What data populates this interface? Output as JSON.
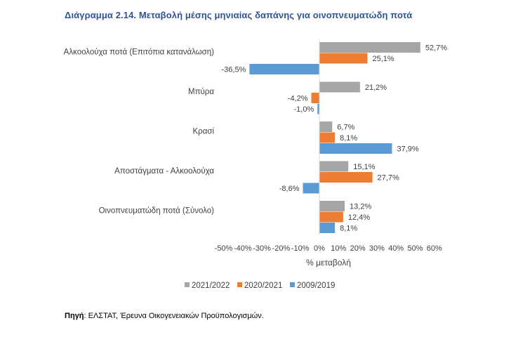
{
  "chart_data": {
    "type": "bar",
    "orientation": "horizontal",
    "title": "Διάγραμμα 2.14. Μεταβολή μέσης μηνιαίας δαπάνης για οινοπνευματώδη ποτά",
    "categories": [
      "Αλκοολούχα ποτά (Επιτόπια κατανάλωση)",
      "Μπύρα",
      "Κρασί",
      "Αποστάγματα - Αλκοολούχα",
      "Οινοπνευματώδη ποτά (Σύνολο)"
    ],
    "series": [
      {
        "name": "2021/2022",
        "color": "#a5a5a5",
        "values": [
          52.7,
          21.2,
          6.7,
          15.1,
          13.2
        ],
        "labels": [
          "52,7%",
          "21,2%",
          "6,7%",
          "15,1%",
          "13,2%"
        ]
      },
      {
        "name": "2020/2021",
        "color": "#ed7d31",
        "values": [
          25.1,
          -4.2,
          8.1,
          27.7,
          12.4
        ],
        "labels": [
          "25,1%",
          "-4,2%",
          "8,1%",
          "27,7%",
          "12,4%"
        ]
      },
      {
        "name": "2009/2019",
        "color": "#5b9bd5",
        "values": [
          -36.5,
          -1.0,
          37.9,
          -8.6,
          8.1
        ],
        "labels": [
          "-36,5%",
          "-1,0%",
          "37,9%",
          "-8,6%",
          "8,1%"
        ]
      }
    ],
    "xlabel": "% μεταβολή",
    "ylabel": "",
    "xlim": [
      -50,
      60
    ],
    "xticks": [
      -50,
      -40,
      -30,
      -20,
      -10,
      0,
      10,
      20,
      30,
      40,
      50,
      60
    ],
    "xtick_labels": [
      "-50%",
      "-40%",
      "-30%",
      "-20%",
      "-10%",
      "0%",
      "10%",
      "20%",
      "30%",
      "40%",
      "50%",
      "60%"
    ],
    "grid": false,
    "legend_position": "bottom"
  },
  "source": {
    "label": "Πηγή",
    "text": ": ΕΛΣΤΑΤ, Έρευνα Οικογενειακών Προϋπολογισμών."
  }
}
